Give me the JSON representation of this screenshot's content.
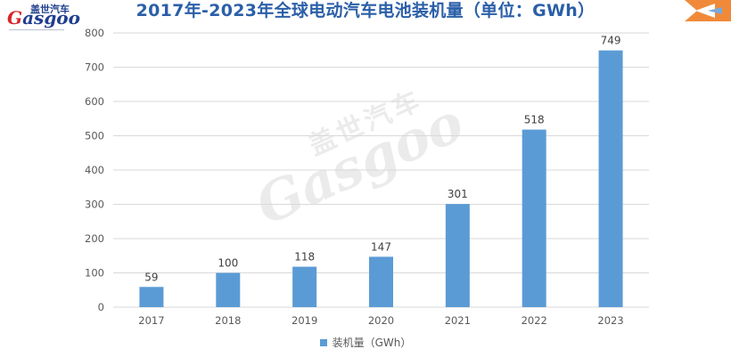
{
  "brand": {
    "logo_cn": "盖世汽车",
    "logo_en_initial": "G",
    "logo_en_rest": "asgoo",
    "watermark_cn": "盖世汽车",
    "watermark_en": "Gasgoo",
    "primary_color": "#1f3f8f",
    "accent_color": "#d7262b"
  },
  "chart_data": {
    "type": "bar",
    "title": "2017年-2023年全球电动汽车电池装机量（单位：GWh）",
    "categories": [
      "2017",
      "2018",
      "2019",
      "2020",
      "2021",
      "2022",
      "2023"
    ],
    "series": [
      {
        "name": "装机量（GWh）",
        "values": [
          59,
          100,
          118,
          147,
          301,
          518,
          749
        ],
        "color": "#5b9bd5"
      }
    ],
    "yticks": [
      "0",
      "100",
      "200",
      "300",
      "400",
      "500",
      "600",
      "700",
      "800"
    ],
    "ylim": [
      0,
      800
    ],
    "grid": true,
    "legend_position": "bottom",
    "data_labels": true
  }
}
